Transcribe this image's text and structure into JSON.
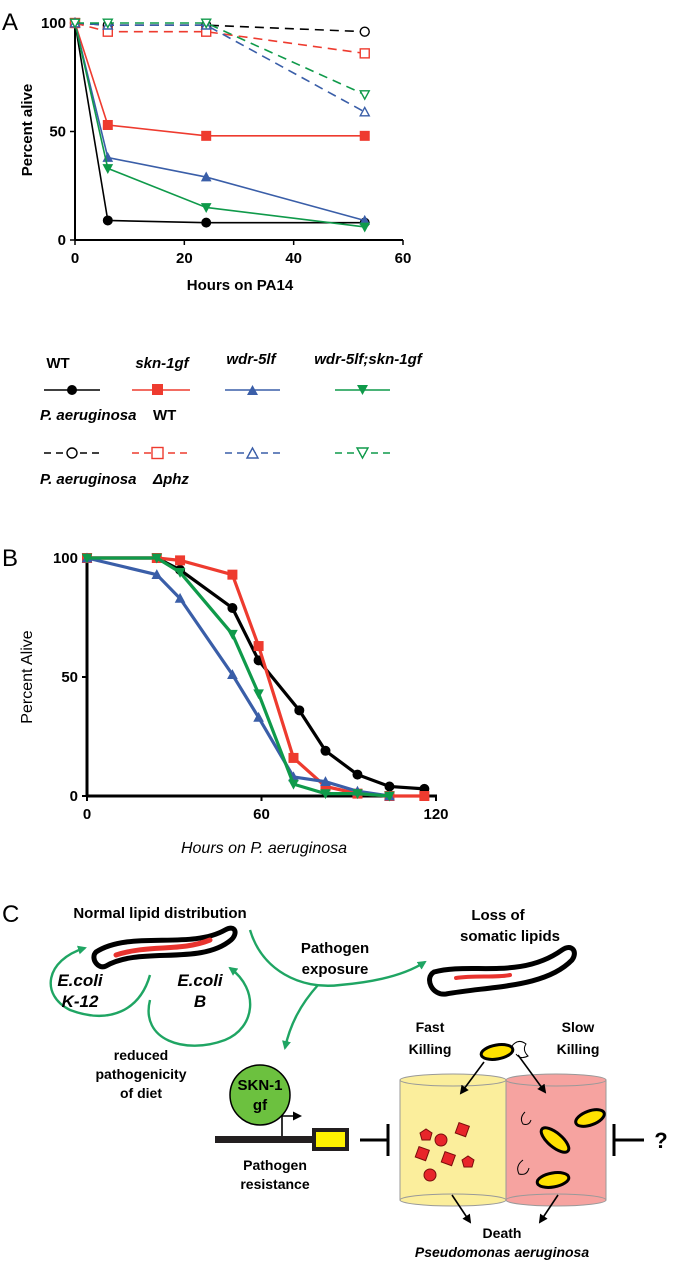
{
  "panel_a": {
    "letter": "A",
    "xlabel": "Hours on PA14",
    "ylabel": "Percent alive",
    "x_ticks": [
      "0",
      "20",
      "40",
      "60"
    ],
    "y_ticks": [
      "0",
      "50",
      "100"
    ]
  },
  "panel_b": {
    "letter": "B",
    "xlabel": "Hours on P. aeruginosa",
    "ylabel": "Percent Alive",
    "x_ticks": [
      "0",
      "60",
      "120"
    ],
    "y_ticks": [
      "0",
      "50",
      "100"
    ]
  },
  "panel_c": {
    "letter": "C",
    "normal_lipid": "Normal lipid distribution",
    "pathogen_line1": "Pathogen",
    "pathogen_line2": "exposure",
    "loss_line1": "Loss of",
    "loss_line2": "somatic lipids",
    "ecoli_k12_line1": "E.coli",
    "ecoli_k12_line2": "K-12",
    "ecoli_b_line1": "E.coli",
    "ecoli_b_line2": "B",
    "reduced_line1": "reduced",
    "reduced_line2": "pathogenicity",
    "reduced_line3": "of diet",
    "skn1_line1": "SKN-1",
    "skn1_line2": "gf",
    "resistance_line1": "Pathogen",
    "resistance_line2": "resistance",
    "fast_line1": "Fast",
    "fast_line2": "Killing",
    "slow_line1": "Slow",
    "slow_line2": "Killing",
    "death": "Death",
    "pseudomonas": "Pseudomonas aeruginosa",
    "question": "?"
  },
  "legend": {
    "strains": [
      "WT",
      "skn-1gf",
      "wdr-5lf",
      "wdr-5lf;skn-1gf"
    ],
    "condition_wt_species": "P. aeruginosa",
    "condition_wt_suffix": "WT",
    "condition_phz_species": "P. aeruginosa",
    "condition_phz_suffix": "Δphz"
  },
  "colors": {
    "wt": "#000000",
    "skn1gf": "#ee3b2f",
    "wdr5lf": "#3a5ea8",
    "double": "#0f9a4a",
    "arrow_green": "#1fa563",
    "skn1_fill": "#6cc13f",
    "fast_box": "#fbee9c",
    "slow_box": "#f6a3a0",
    "lipid_red": "#e8332e"
  },
  "chart_data": [
    {
      "type": "line",
      "title": "",
      "xlabel": "Hours on PA14",
      "ylabel": "Percent alive",
      "xlim": [
        0,
        60
      ],
      "ylim": [
        0,
        100
      ],
      "series": [
        {
          "name": "WT",
          "condition": "P. aeruginosa WT",
          "color": "#000000",
          "marker": "circle-filled",
          "dashed": false,
          "x": [
            0,
            6,
            24,
            53
          ],
          "values": [
            100,
            9,
            8,
            8
          ]
        },
        {
          "name": "skn-1gf",
          "condition": "P. aeruginosa WT",
          "color": "#ee3b2f",
          "marker": "square-filled",
          "dashed": false,
          "x": [
            0,
            6,
            24,
            53
          ],
          "values": [
            100,
            53,
            48,
            48
          ]
        },
        {
          "name": "wdr-5lf",
          "condition": "P. aeruginosa WT",
          "color": "#3a5ea8",
          "marker": "triangle-up-filled",
          "dashed": false,
          "x": [
            0,
            6,
            24,
            53
          ],
          "values": [
            100,
            38,
            29,
            9
          ]
        },
        {
          "name": "wdr-5lf;skn-1gf",
          "condition": "P. aeruginosa WT",
          "color": "#0f9a4a",
          "marker": "triangle-down-filled",
          "dashed": false,
          "x": [
            0,
            6,
            24,
            53
          ],
          "values": [
            100,
            33,
            15,
            6
          ]
        },
        {
          "name": "WT",
          "condition": "P. aeruginosa Δphz",
          "color": "#000000",
          "marker": "circle-open",
          "dashed": true,
          "x": [
            0,
            6,
            24,
            53
          ],
          "values": [
            100,
            99,
            99,
            96
          ]
        },
        {
          "name": "skn-1gf",
          "condition": "P. aeruginosa Δphz",
          "color": "#ee3b2f",
          "marker": "square-open",
          "dashed": true,
          "x": [
            0,
            6,
            24,
            53
          ],
          "values": [
            100,
            96,
            96,
            86
          ]
        },
        {
          "name": "wdr-5lf",
          "condition": "P. aeruginosa Δphz",
          "color": "#3a5ea8",
          "marker": "triangle-up-open",
          "dashed": true,
          "x": [
            0,
            6,
            24,
            53
          ],
          "values": [
            100,
            99,
            99,
            59
          ]
        },
        {
          "name": "wdr-5lf;skn-1gf",
          "condition": "P. aeruginosa Δphz",
          "color": "#0f9a4a",
          "marker": "triangle-down-open",
          "dashed": true,
          "x": [
            0,
            6,
            24,
            53
          ],
          "values": [
            100,
            100,
            100,
            67
          ]
        }
      ]
    },
    {
      "type": "line",
      "title": "",
      "xlabel": "Hours on P. aeruginosa",
      "ylabel": "Percent Alive",
      "xlim": [
        0,
        120
      ],
      "ylim": [
        0,
        100
      ],
      "series": [
        {
          "name": "WT",
          "color": "#000000",
          "marker": "circle-filled",
          "x": [
            0,
            24,
            32,
            50,
            59,
            73,
            82,
            93,
            104,
            116
          ],
          "values": [
            100,
            100,
            95,
            79,
            57,
            36,
            19,
            9,
            4,
            3
          ]
        },
        {
          "name": "skn-1gf",
          "color": "#ee3b2f",
          "marker": "square-filled",
          "x": [
            0,
            24,
            32,
            50,
            59,
            71,
            82,
            93,
            104,
            116
          ],
          "values": [
            100,
            100,
            99,
            93,
            63,
            16,
            4,
            1,
            0,
            0
          ]
        },
        {
          "name": "wdr-5lf",
          "color": "#3a5ea8",
          "marker": "triangle-up-filled",
          "x": [
            0,
            24,
            32,
            50,
            59,
            71,
            82,
            93,
            104
          ],
          "values": [
            100,
            93,
            83,
            51,
            33,
            8,
            6,
            2,
            0
          ]
        },
        {
          "name": "wdr-5lf;skn-1gf",
          "color": "#0f9a4a",
          "marker": "triangle-down-filled",
          "x": [
            0,
            24,
            32,
            50,
            59,
            71,
            82,
            93,
            104
          ],
          "values": [
            100,
            100,
            94,
            68,
            43,
            5,
            1,
            1,
            0
          ]
        }
      ]
    }
  ]
}
